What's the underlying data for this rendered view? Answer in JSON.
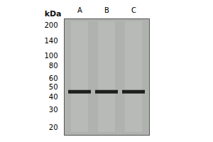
{
  "chart_data": {
    "type": "tick",
    "ylabel": "kDa",
    "categories": [
      "A",
      "B",
      "C"
    ],
    "values": [
      45,
      45,
      45
    ],
    "color": "#111111",
    "log": "y",
    "ylim": [
      17,
      230
    ],
    "yticks": [
      200,
      140,
      100,
      80,
      60,
      50,
      40,
      30,
      20
    ],
    "grid": false
  }
}
